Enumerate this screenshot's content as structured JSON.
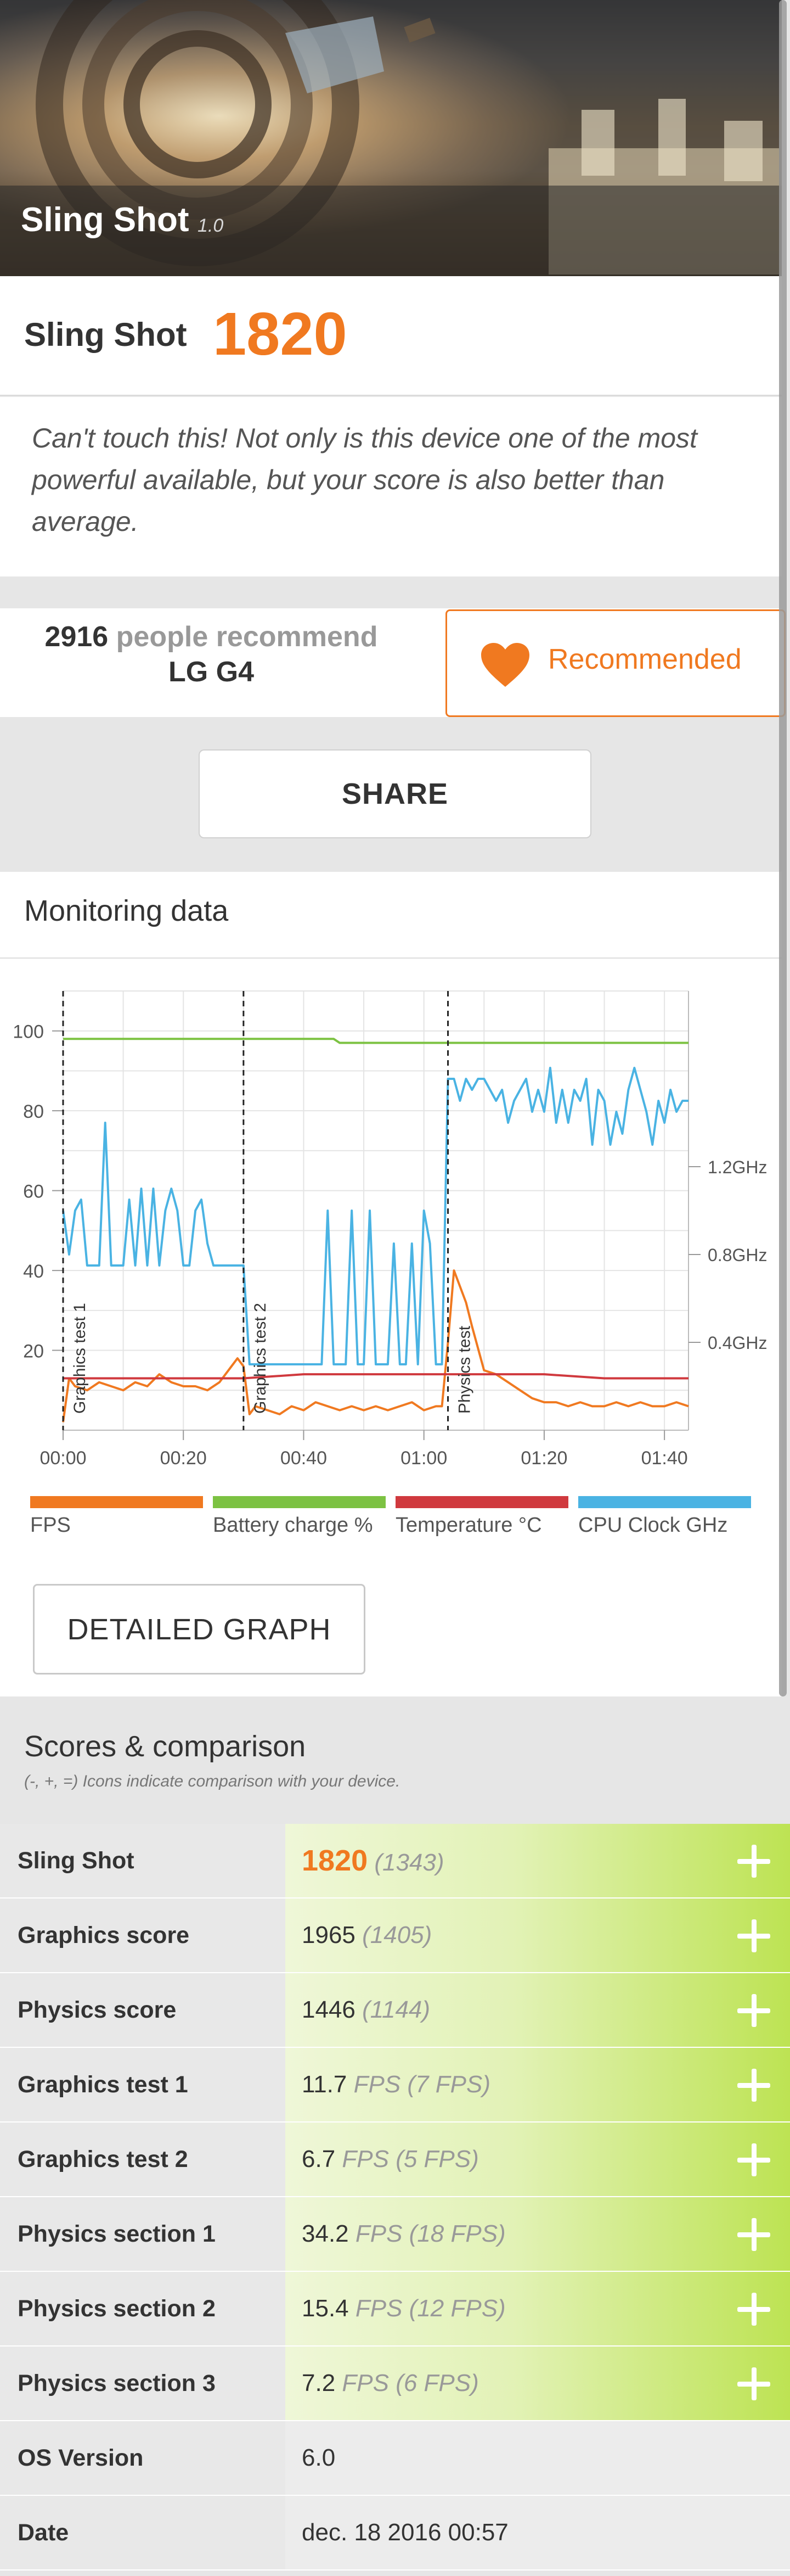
{
  "hero": {
    "title": "Sling Shot",
    "version": "1.0"
  },
  "score": {
    "label": "Sling Shot",
    "value": "1820"
  },
  "description": "Can't touch this! Not only is this device one of the most powerful available, but your score is also better than average.",
  "recommend": {
    "count": "2916",
    "middle": " people recommend ",
    "device": "LG G4",
    "button_label": "Recommended"
  },
  "share_label": "SHARE",
  "monitoring": {
    "title": "Monitoring data",
    "y_left_ticks": [
      "100",
      "80",
      "60",
      "40",
      "20"
    ],
    "y_right_ticks": [
      "1.2GHz",
      "0.8GHz",
      "0.4GHz"
    ],
    "x_ticks": [
      "00:00",
      "00:20",
      "00:40",
      "01:00",
      "01:20",
      "01:40"
    ],
    "markers": [
      "Graphics test 1",
      "Graphics test 2",
      "Physics test"
    ],
    "legend": [
      {
        "label": "FPS",
        "color": "#f07920"
      },
      {
        "label": "Battery charge %",
        "color": "#7cc242"
      },
      {
        "label": "Temperature °C",
        "color": "#d0393e"
      },
      {
        "label": "CPU Clock GHz",
        "color": "#4ab3e3"
      }
    ]
  },
  "chart_data": {
    "type": "line",
    "xlabel": "",
    "ylabel": "",
    "xlim": [
      0,
      104
    ],
    "ylim": [
      0,
      110
    ],
    "x_unit": "seconds",
    "markers_at": [
      0,
      30,
      64
    ],
    "series": [
      {
        "name": "FPS",
        "color": "#f07920",
        "x": [
          0,
          1,
          2,
          4,
          6,
          8,
          10,
          12,
          14,
          16,
          18,
          20,
          22,
          24,
          26,
          28,
          29,
          30,
          31,
          32,
          34,
          36,
          38,
          40,
          42,
          44,
          46,
          48,
          50,
          52,
          54,
          56,
          58,
          60,
          62,
          63,
          64,
          65,
          66,
          67,
          68,
          70,
          72,
          74,
          76,
          78,
          80,
          82,
          84,
          86,
          88,
          90,
          92,
          94,
          96,
          98,
          100,
          102,
          104
        ],
        "y": [
          2,
          13,
          11,
          10,
          12,
          11,
          10,
          12,
          11,
          14,
          12,
          11,
          11,
          10,
          12,
          16,
          18,
          16,
          4,
          6,
          5,
          4,
          6,
          5,
          7,
          6,
          5,
          6,
          5,
          6,
          5,
          6,
          7,
          5,
          6,
          6,
          22,
          40,
          36,
          32,
          26,
          15,
          14,
          12,
          10,
          8,
          7,
          7,
          6,
          7,
          6,
          6,
          7,
          6,
          7,
          6,
          6,
          7,
          6
        ]
      },
      {
        "name": "Battery charge %",
        "color": "#7cc242",
        "x": [
          0,
          20,
          45,
          46,
          104
        ],
        "y": [
          98,
          98,
          98,
          97,
          97
        ]
      },
      {
        "name": "Temperature °C",
        "color": "#d0393e",
        "x": [
          0,
          10,
          20,
          30,
          40,
          50,
          60,
          70,
          80,
          90,
          104
        ],
        "y": [
          13,
          13,
          13,
          13,
          14,
          14,
          14,
          14,
          14,
          13,
          13
        ]
      },
      {
        "name": "CPU Clock GHz",
        "color": "#4ab3e3",
        "x": [
          0,
          1,
          2,
          3,
          4,
          5,
          6,
          7,
          8,
          9,
          10,
          11,
          12,
          13,
          14,
          15,
          16,
          17,
          18,
          19,
          20,
          21,
          22,
          23,
          24,
          25,
          26,
          27,
          28,
          29,
          30,
          31,
          32,
          33,
          34,
          35,
          36,
          37,
          38,
          39,
          40,
          41,
          42,
          43,
          44,
          45,
          46,
          47,
          48,
          49,
          50,
          51,
          52,
          53,
          54,
          55,
          56,
          57,
          58,
          59,
          60,
          61,
          62,
          63,
          64,
          65,
          66,
          67,
          68,
          69,
          70,
          71,
          72,
          73,
          74,
          75,
          76,
          77,
          78,
          79,
          80,
          81,
          82,
          83,
          84,
          85,
          86,
          87,
          88,
          89,
          90,
          91,
          92,
          93,
          94,
          95,
          96,
          97,
          98,
          99,
          100,
          101,
          102,
          103,
          104
        ],
        "y": [
          1.0,
          0.8,
          1.0,
          1.05,
          0.75,
          0.75,
          0.75,
          1.4,
          0.75,
          0.75,
          0.75,
          1.05,
          0.75,
          1.1,
          0.75,
          1.1,
          0.75,
          1.0,
          1.1,
          1.0,
          0.75,
          0.75,
          1.0,
          1.05,
          0.85,
          0.75,
          0.75,
          0.75,
          0.75,
          0.75,
          0.75,
          0.3,
          0.3,
          0.3,
          0.3,
          0.3,
          0.3,
          0.3,
          0.3,
          0.3,
          0.3,
          0.3,
          0.3,
          0.3,
          1.0,
          0.3,
          0.3,
          0.3,
          1.0,
          0.3,
          0.3,
          1.0,
          0.3,
          0.3,
          0.3,
          0.85,
          0.3,
          0.3,
          0.85,
          0.3,
          1.0,
          0.85,
          0.3,
          0.3,
          1.6,
          1.6,
          1.5,
          1.6,
          1.55,
          1.6,
          1.6,
          1.55,
          1.5,
          1.55,
          1.4,
          1.5,
          1.55,
          1.6,
          1.45,
          1.55,
          1.45,
          1.65,
          1.4,
          1.55,
          1.4,
          1.55,
          1.5,
          1.6,
          1.3,
          1.55,
          1.5,
          1.3,
          1.45,
          1.35,
          1.55,
          1.65,
          1.55,
          1.45,
          1.3,
          1.5,
          1.4,
          1.55,
          1.45,
          1.5,
          1.5
        ]
      }
    ]
  },
  "detail_button": "DETAILED GRAPH",
  "comparison": {
    "title": "Scores & comparison",
    "note": "(-, +, =) Icons indicate comparison with your device.",
    "rows": [
      {
        "label": "Sling Shot",
        "value": "1820",
        "compare": "(1343)",
        "plus": true,
        "big": true
      },
      {
        "label": "Graphics score",
        "value": "1965",
        "compare": "(1405)",
        "plus": true
      },
      {
        "label": "Physics score",
        "value": "1446",
        "compare": "(1144)",
        "plus": true
      },
      {
        "label": "Graphics test 1",
        "value": "11.7",
        "compare": "FPS (7 FPS)",
        "plus": true
      },
      {
        "label": "Graphics test 2",
        "value": "6.7",
        "compare": "FPS (5 FPS)",
        "plus": true
      },
      {
        "label": "Physics section 1",
        "value": "34.2",
        "compare": "FPS (18 FPS)",
        "plus": true
      },
      {
        "label": "Physics section 2",
        "value": "15.4",
        "compare": "FPS (12 FPS)",
        "plus": true
      },
      {
        "label": "Physics section 3",
        "value": "7.2",
        "compare": "FPS (6 FPS)",
        "plus": true
      },
      {
        "label": "OS Version",
        "value": "6.0",
        "compare": "",
        "plus": false
      },
      {
        "label": "Date",
        "value": "dec. 18 2016 00:57",
        "compare": "",
        "plus": false
      }
    ]
  }
}
